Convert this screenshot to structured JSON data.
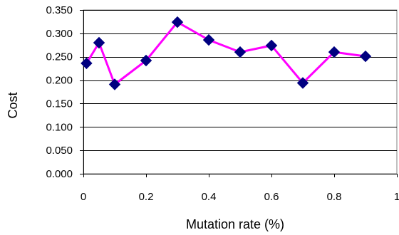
{
  "chart_data": {
    "type": "line",
    "title": "",
    "xlabel": "Mutation rate (%)",
    "ylabel": "Cost",
    "xlim": [
      0,
      1
    ],
    "ylim": [
      0,
      0.35
    ],
    "x_ticks": [
      "0",
      "0.2",
      "0.4",
      "0.6",
      "0.8",
      "1"
    ],
    "y_ticks": [
      "0.000",
      "0.050",
      "0.100",
      "0.150",
      "0.200",
      "0.250",
      "0.300",
      "0.350"
    ],
    "grid": "horizontal",
    "legend": "none",
    "series": [
      {
        "line_color": "#ff00ff",
        "marker_color": "#000080",
        "marker": "diamond",
        "x": [
          0.01,
          0.05,
          0.1,
          0.2,
          0.3,
          0.4,
          0.5,
          0.6,
          0.7,
          0.8,
          0.9
        ],
        "y": [
          0.236,
          0.28,
          0.191,
          0.242,
          0.324,
          0.286,
          0.26,
          0.274,
          0.194,
          0.26,
          0.251
        ]
      }
    ]
  }
}
